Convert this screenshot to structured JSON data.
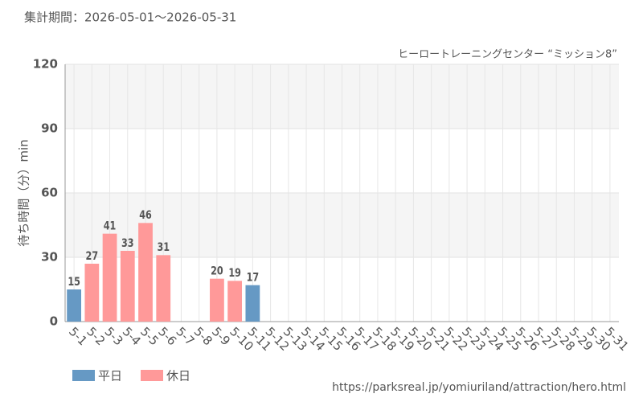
{
  "chart_data": {
    "type": "bar",
    "title": "集計期間：2026-05-01～2026-05-31",
    "subtitle": "ヒーロートレーニングセンター “ミッション8”",
    "y_label": "待ち時間（分）min",
    "source": "https://parksreal.jp/yomiuriland/attraction/hero.html",
    "categories": [
      "5-1",
      "5-2",
      "5-3",
      "5-4",
      "5-5",
      "5-6",
      "5-7",
      "5-8",
      "5-9",
      "5-10",
      "5-11",
      "5-12",
      "5-13",
      "5-14",
      "5-15",
      "5-16",
      "5-17",
      "5-18",
      "5-19",
      "5-20",
      "5-21",
      "5-22",
      "5-23",
      "5-24",
      "5-25",
      "5-26",
      "5-27",
      "5-28",
      "5-29",
      "5-30",
      "5-31"
    ],
    "category_label_colors": [
      "#333333",
      "#f08080",
      "#f08080",
      "#f08080",
      "#f08080",
      "#f08080",
      "#333333",
      "#333333",
      "#f08080",
      "#f08080",
      "#333333",
      "#333333",
      "#333333",
      "#333333",
      "#333333",
      "#f08080",
      "#f08080",
      "#333333",
      "#333333",
      "#333333",
      "#333333",
      "#333333",
      "#f08080",
      "#f08080",
      "#333333",
      "#333333",
      "#333333",
      "#333333",
      "#333333",
      "#f08080",
      "#f08080"
    ],
    "series": [
      {
        "name": "平日",
        "color": "#6699c4",
        "label_color": "#5b8bb5",
        "values": [
          15,
          null,
          null,
          null,
          null,
          null,
          null,
          null,
          null,
          null,
          17,
          null,
          null,
          null,
          null,
          null,
          null,
          null,
          null,
          null,
          null,
          null,
          null,
          null,
          null,
          null,
          null,
          null,
          null,
          null,
          null
        ]
      },
      {
        "name": "休日",
        "color": "#ff9999",
        "label_color": "#f07878",
        "values": [
          null,
          27,
          41,
          33,
          46,
          31,
          null,
          null,
          20,
          19,
          null,
          null,
          null,
          null,
          null,
          null,
          null,
          null,
          null,
          null,
          null,
          null,
          null,
          null,
          null,
          null,
          null,
          null,
          null,
          null,
          null
        ]
      }
    ],
    "ylim": [
      0,
      120
    ],
    "yticks": [
      0,
      30,
      60,
      90,
      120
    ],
    "grid": true,
    "stacked": true,
    "legend": "bottom-left"
  }
}
